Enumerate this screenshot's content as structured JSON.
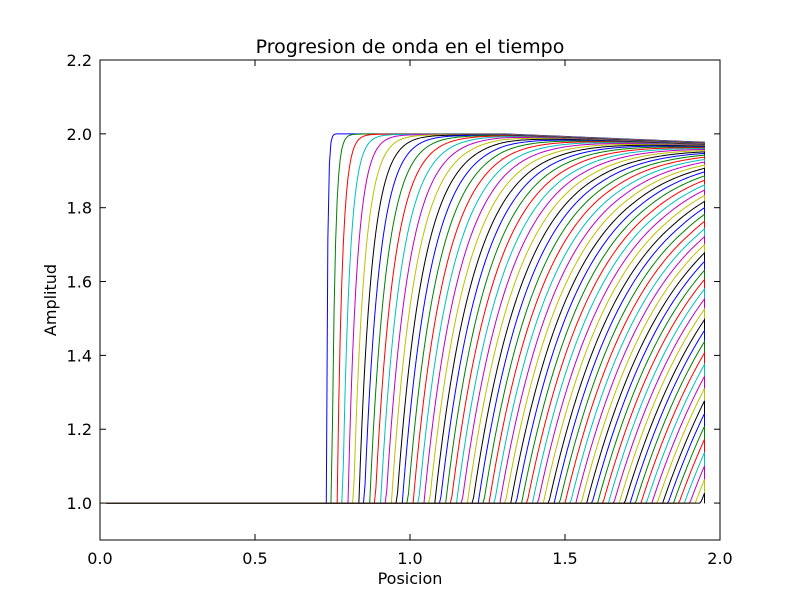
{
  "chart_data": {
    "type": "line",
    "title": "Progresion de onda en el tiempo",
    "xlabel": "Posicion",
    "ylabel": "Amplitud",
    "xlim": [
      0.0,
      2.0
    ],
    "ylim": [
      0.9,
      2.2
    ],
    "xticks": [
      "0.0",
      "0.5",
      "1.0",
      "1.5",
      "2.0"
    ],
    "yticks": [
      "1.0",
      "1.2",
      "1.4",
      "1.6",
      "1.8",
      "2.0",
      "2.2"
    ],
    "grid": false,
    "legend": "none",
    "x_range": [
      0.02,
      1.95
    ],
    "baseline": 1.0,
    "peak": 2.0,
    "first_front_position": 0.73,
    "front_position_step": 0.0175,
    "peak_decay_per_step": 0.0005,
    "series_count": 70,
    "color_cycle": [
      "#0000ff",
      "#008000",
      "#ff0000",
      "#00bfbf",
      "#bf00bf",
      "#bfbf00",
      "#000000"
    ]
  }
}
